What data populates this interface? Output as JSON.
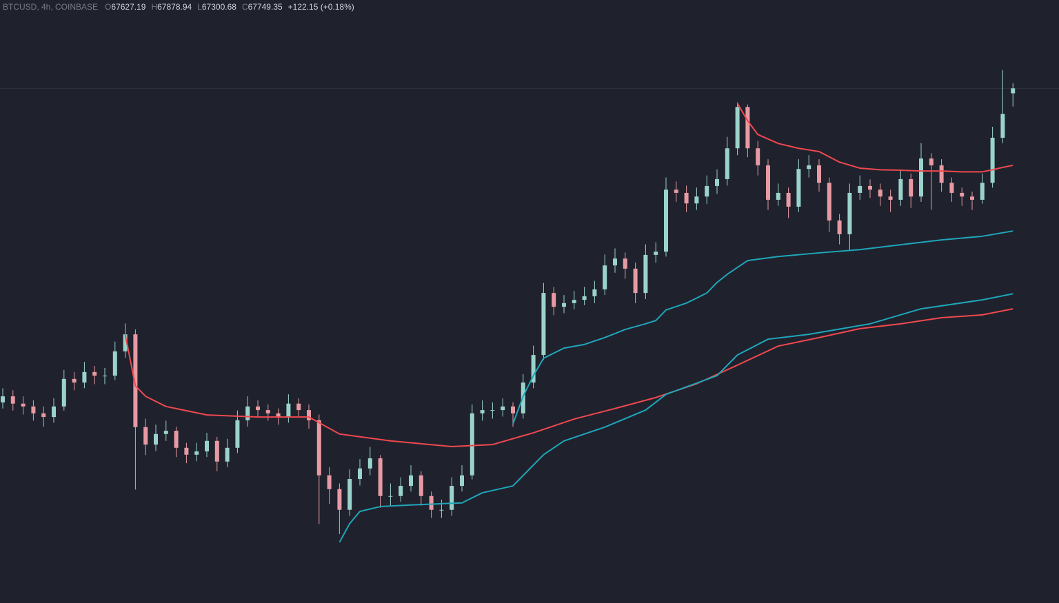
{
  "legend": {
    "symbol": "BTCUSD, 4h, COINBASE",
    "ohlc_labels": [
      "O",
      "H",
      "L",
      "C"
    ],
    "change": "+122.15 (+0.18%)"
  },
  "chart_data": {
    "type": "candlestick",
    "ylim": [
      55050,
      69930
    ],
    "up_color": "#9ad3cb",
    "down_color": "#e79aa3",
    "candles": [
      [
        60000,
        60350,
        59850,
        60150
      ],
      [
        60150,
        60300,
        59800,
        59970
      ],
      [
        59970,
        60150,
        59700,
        59900
      ],
      [
        59900,
        60050,
        59550,
        59730
      ],
      [
        59730,
        59900,
        59400,
        59640
      ],
      [
        59640,
        60100,
        59500,
        59900
      ],
      [
        59900,
        60800,
        59800,
        60580
      ],
      [
        60580,
        60750,
        60300,
        60490
      ],
      [
        60490,
        61000,
        60350,
        60750
      ],
      [
        60750,
        60900,
        60450,
        60660
      ],
      [
        60660,
        60850,
        60450,
        60660
      ],
      [
        60660,
        61500,
        60550,
        61260
      ],
      [
        61260,
        61950,
        61100,
        61680
      ],
      [
        61680,
        61800,
        57850,
        59390
      ],
      [
        59390,
        59600,
        58700,
        58960
      ],
      [
        58960,
        59450,
        58800,
        59220
      ],
      [
        59220,
        59550,
        59050,
        59300
      ],
      [
        59300,
        59400,
        58650,
        58880
      ],
      [
        58880,
        59000,
        58500,
        58710
      ],
      [
        58710,
        59000,
        58550,
        58790
      ],
      [
        58790,
        59250,
        58650,
        59050
      ],
      [
        59050,
        59150,
        58300,
        58540
      ],
      [
        58540,
        59100,
        58400,
        58880
      ],
      [
        58880,
        59800,
        58750,
        59560
      ],
      [
        59560,
        60150,
        59400,
        59900
      ],
      [
        59900,
        60050,
        59650,
        59810
      ],
      [
        59810,
        59950,
        59550,
        59730
      ],
      [
        59730,
        59850,
        59450,
        59640
      ],
      [
        59640,
        60200,
        59500,
        59970
      ],
      [
        59970,
        60100,
        59650,
        59810
      ],
      [
        59810,
        59950,
        59350,
        59560
      ],
      [
        59560,
        59700,
        57000,
        58200
      ],
      [
        58200,
        58400,
        57500,
        57860
      ],
      [
        57860,
        58000,
        56750,
        57350
      ],
      [
        57350,
        58350,
        57200,
        58110
      ],
      [
        58110,
        58600,
        57950,
        58370
      ],
      [
        58370,
        58900,
        58200,
        58620
      ],
      [
        58620,
        58700,
        57400,
        57690
      ],
      [
        57690,
        58000,
        57450,
        57690
      ],
      [
        57690,
        58150,
        57550,
        57940
      ],
      [
        57940,
        58450,
        57800,
        58200
      ],
      [
        58200,
        58300,
        57450,
        57690
      ],
      [
        57690,
        57800,
        57150,
        57350
      ],
      [
        57350,
        57600,
        57150,
        57350
      ],
      [
        57350,
        58150,
        57200,
        57940
      ],
      [
        57940,
        58450,
        57800,
        58200
      ],
      [
        58200,
        59950,
        58100,
        59730
      ],
      [
        59730,
        60050,
        59550,
        59810
      ],
      [
        59810,
        60000,
        59600,
        59810
      ],
      [
        59810,
        60100,
        59650,
        59900
      ],
      [
        59900,
        60000,
        59400,
        59730
      ],
      [
        59730,
        60700,
        59600,
        60490
      ],
      [
        60490,
        61400,
        60350,
        61170
      ],
      [
        61170,
        62950,
        61050,
        62700
      ],
      [
        62700,
        62850,
        62150,
        62360
      ],
      [
        62360,
        62650,
        62200,
        62450
      ],
      [
        62450,
        62750,
        62300,
        62530
      ],
      [
        62530,
        62850,
        62400,
        62620
      ],
      [
        62620,
        63000,
        62450,
        62790
      ],
      [
        62790,
        63650,
        62650,
        63380
      ],
      [
        63380,
        63800,
        63200,
        63550
      ],
      [
        63550,
        63700,
        63050,
        63300
      ],
      [
        63300,
        63450,
        62450,
        62700
      ],
      [
        62700,
        63900,
        62550,
        63640
      ],
      [
        63640,
        63950,
        63450,
        63720
      ],
      [
        63720,
        65550,
        63600,
        65250
      ],
      [
        65250,
        65450,
        64950,
        65170
      ],
      [
        65170,
        65350,
        64700,
        64910
      ],
      [
        64910,
        65300,
        64750,
        65080
      ],
      [
        65080,
        65600,
        64900,
        65340
      ],
      [
        65340,
        65750,
        65150,
        65510
      ],
      [
        65510,
        66550,
        65350,
        66270
      ],
      [
        66270,
        67400,
        66100,
        67290
      ],
      [
        67290,
        67350,
        66050,
        66270
      ],
      [
        66270,
        66450,
        65600,
        65850
      ],
      [
        65850,
        66000,
        64750,
        65000
      ],
      [
        65000,
        65400,
        64850,
        65170
      ],
      [
        65170,
        65300,
        64550,
        64830
      ],
      [
        64830,
        66000,
        64700,
        65760
      ],
      [
        65760,
        66100,
        65550,
        65850
      ],
      [
        65850,
        66000,
        65200,
        65420
      ],
      [
        65420,
        65550,
        64200,
        64490
      ],
      [
        64490,
        64650,
        63900,
        64150
      ],
      [
        64150,
        65400,
        63750,
        65170
      ],
      [
        65170,
        65600,
        65000,
        65340
      ],
      [
        65340,
        65500,
        65050,
        65250
      ],
      [
        65250,
        65400,
        64850,
        65080
      ],
      [
        65080,
        65250,
        64700,
        65000
      ],
      [
        65000,
        65750,
        64850,
        65510
      ],
      [
        65510,
        65650,
        64800,
        65080
      ],
      [
        65080,
        66400,
        64950,
        66020
      ],
      [
        66020,
        66150,
        64750,
        65850
      ],
      [
        65850,
        66000,
        65200,
        65420
      ],
      [
        65420,
        65550,
        64950,
        65170
      ],
      [
        65170,
        65300,
        64850,
        65080
      ],
      [
        65080,
        65200,
        64750,
        65000
      ],
      [
        65000,
        65650,
        64900,
        65420
      ],
      [
        65420,
        66800,
        65300,
        66530
      ],
      [
        66530,
        68200,
        66400,
        67120
      ],
      [
        67627.19,
        67878.94,
        67300.68,
        67749.35
      ]
    ],
    "series": [
      {
        "color": "#f0484e",
        "x": [
          12,
          13,
          14,
          16,
          20,
          25,
          30,
          33,
          38,
          44,
          48,
          52,
          56,
          60,
          64,
          68,
          72,
          76,
          80,
          84,
          88,
          92,
          96,
          99
        ],
        "values": [
          61680,
          60410,
          60150,
          59900,
          59690,
          59640,
          59640,
          59220,
          59050,
          58910,
          58960,
          59250,
          59590,
          59850,
          60120,
          60460,
          60920,
          61390,
          61600,
          61820,
          61940,
          62090,
          62160,
          62310
        ]
      },
      {
        "color": "#f0484e",
        "x": [
          72,
          73,
          74,
          76,
          78,
          80,
          82,
          84,
          86,
          88,
          90,
          92,
          94,
          96,
          97,
          98,
          99
        ],
        "values": [
          67380,
          66950,
          66610,
          66390,
          66270,
          66190,
          65930,
          65780,
          65740,
          65730,
          65710,
          65710,
          65690,
          65690,
          65740,
          65800,
          65850
        ]
      },
      {
        "color": "#1fa6ba",
        "x": [
          33,
          34,
          35,
          37,
          40,
          43,
          45,
          47,
          50,
          53,
          55,
          59,
          63,
          65,
          70,
          72,
          75,
          79,
          85,
          90,
          96,
          99
        ],
        "values": [
          56550,
          57010,
          57310,
          57430,
          57470,
          57500,
          57520,
          57770,
          57940,
          58710,
          59050,
          59390,
          59810,
          60200,
          60660,
          61170,
          61560,
          61680,
          61940,
          62310,
          62530,
          62680
        ]
      },
      {
        "color": "#1fa6ba",
        "x": [
          50,
          51,
          52,
          53,
          55,
          57,
          59,
          61,
          63,
          64,
          65,
          67,
          69,
          70,
          71,
          72,
          73,
          76,
          80,
          84,
          88,
          92,
          96,
          99
        ],
        "values": [
          59470,
          60150,
          60660,
          61090,
          61340,
          61430,
          61600,
          61800,
          61940,
          62020,
          62280,
          62450,
          62700,
          62960,
          63160,
          63330,
          63500,
          63600,
          63690,
          63770,
          63890,
          64010,
          64100,
          64230
        ]
      }
    ]
  }
}
